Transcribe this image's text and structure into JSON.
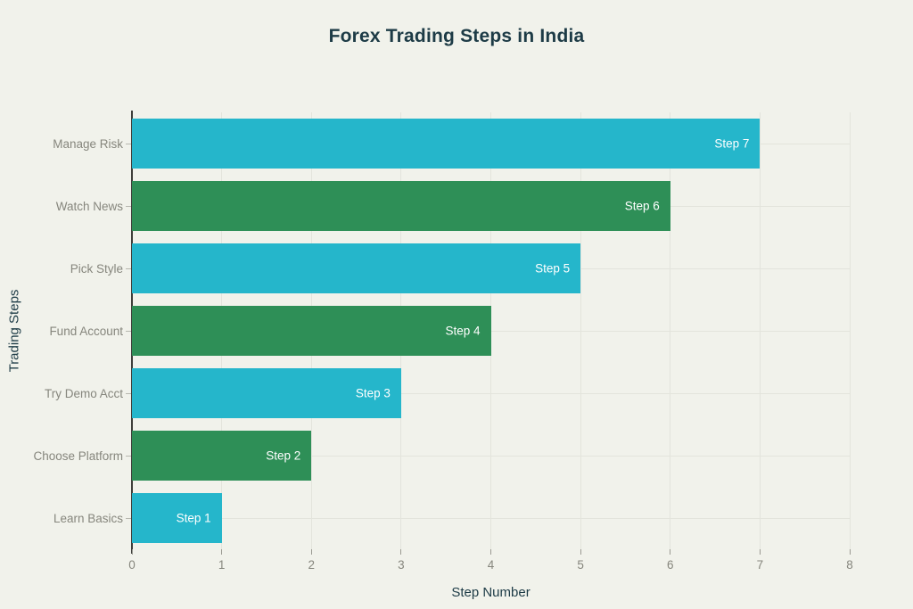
{
  "title": "Forex Trading Steps in India",
  "colors": {
    "background": "#f1f2eb",
    "bar_teal": "#25b6cb",
    "bar_green": "#2e8f57",
    "title_text": "#1d3b46",
    "axis_text": "#86867d",
    "grid": "#e3e4dc",
    "axis_line": "#3e3e3a",
    "bar_label": "#ffffff",
    "tick": "#9a9a92"
  },
  "chart_data": {
    "type": "bar",
    "orientation": "horizontal",
    "title": "Forex Trading Steps in India",
    "xlabel": "Step Number",
    "ylabel": "Trading Steps",
    "xlim": [
      0,
      8
    ],
    "xticks": [
      0,
      1,
      2,
      3,
      4,
      5,
      6,
      7,
      8
    ],
    "grid": true,
    "legend": false,
    "categories": [
      "Manage Risk",
      "Watch News",
      "Pick Style",
      "Fund Account",
      "Try Demo Acct",
      "Choose Platform",
      "Learn Basics"
    ],
    "values": [
      7,
      6,
      5,
      4,
      3,
      2,
      1
    ],
    "bar_labels": [
      "Step 7",
      "Step 6",
      "Step 5",
      "Step 4",
      "Step 3",
      "Step 2",
      "Step 1"
    ],
    "bar_color_keys": [
      "bar_teal",
      "bar_green",
      "bar_teal",
      "bar_green",
      "bar_teal",
      "bar_green",
      "bar_teal"
    ]
  }
}
